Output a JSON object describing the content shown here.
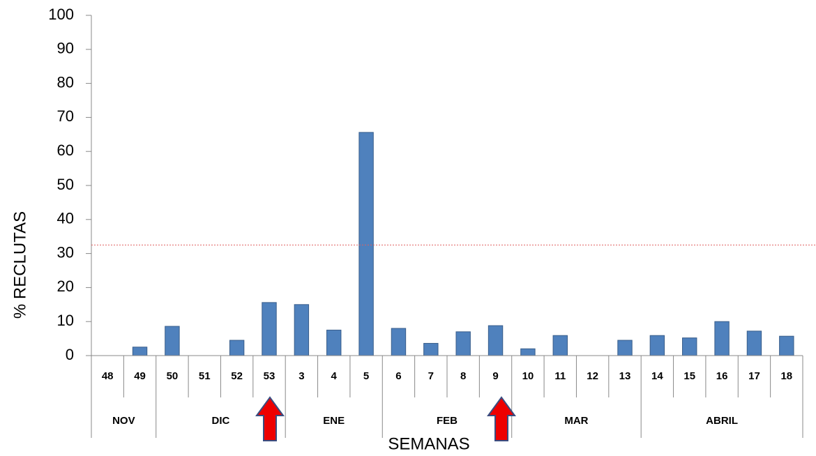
{
  "chart_data": {
    "type": "bar",
    "y_label": "% RECLUTAS",
    "x_label": "SEMANAS",
    "ylim": [
      0,
      100
    ],
    "yticks": [
      0,
      10,
      20,
      30,
      40,
      50,
      60,
      70,
      80,
      90,
      100
    ],
    "color": "#4f81bd",
    "groups": [
      {
        "name": "NOV",
        "categories": [
          "48",
          "49"
        ],
        "values": [
          0,
          2.5
        ]
      },
      {
        "name": "DIC",
        "categories": [
          "50",
          "51",
          "52",
          "53"
        ],
        "values": [
          8.6,
          0,
          4.5,
          15.6
        ]
      },
      {
        "name": "ENE",
        "categories": [
          "3",
          "4",
          "5"
        ],
        "values": [
          15,
          7.5,
          65.6
        ]
      },
      {
        "name": "FEB",
        "categories": [
          "6",
          "7",
          "8",
          "9"
        ],
        "values": [
          8,
          3.6,
          7,
          8.8
        ]
      },
      {
        "name": "MAR",
        "categories": [
          "10",
          "11",
          "12",
          "13"
        ],
        "values": [
          2,
          5.9,
          0,
          4.5
        ]
      },
      {
        "name": "ABRIL",
        "categories": [
          "14",
          "15",
          "16",
          "17",
          "18"
        ],
        "values": [
          5.9,
          5.2,
          10,
          7.2,
          5.7
        ]
      }
    ],
    "reference_line": {
      "value": 32.5,
      "color": "#e06060"
    }
  }
}
